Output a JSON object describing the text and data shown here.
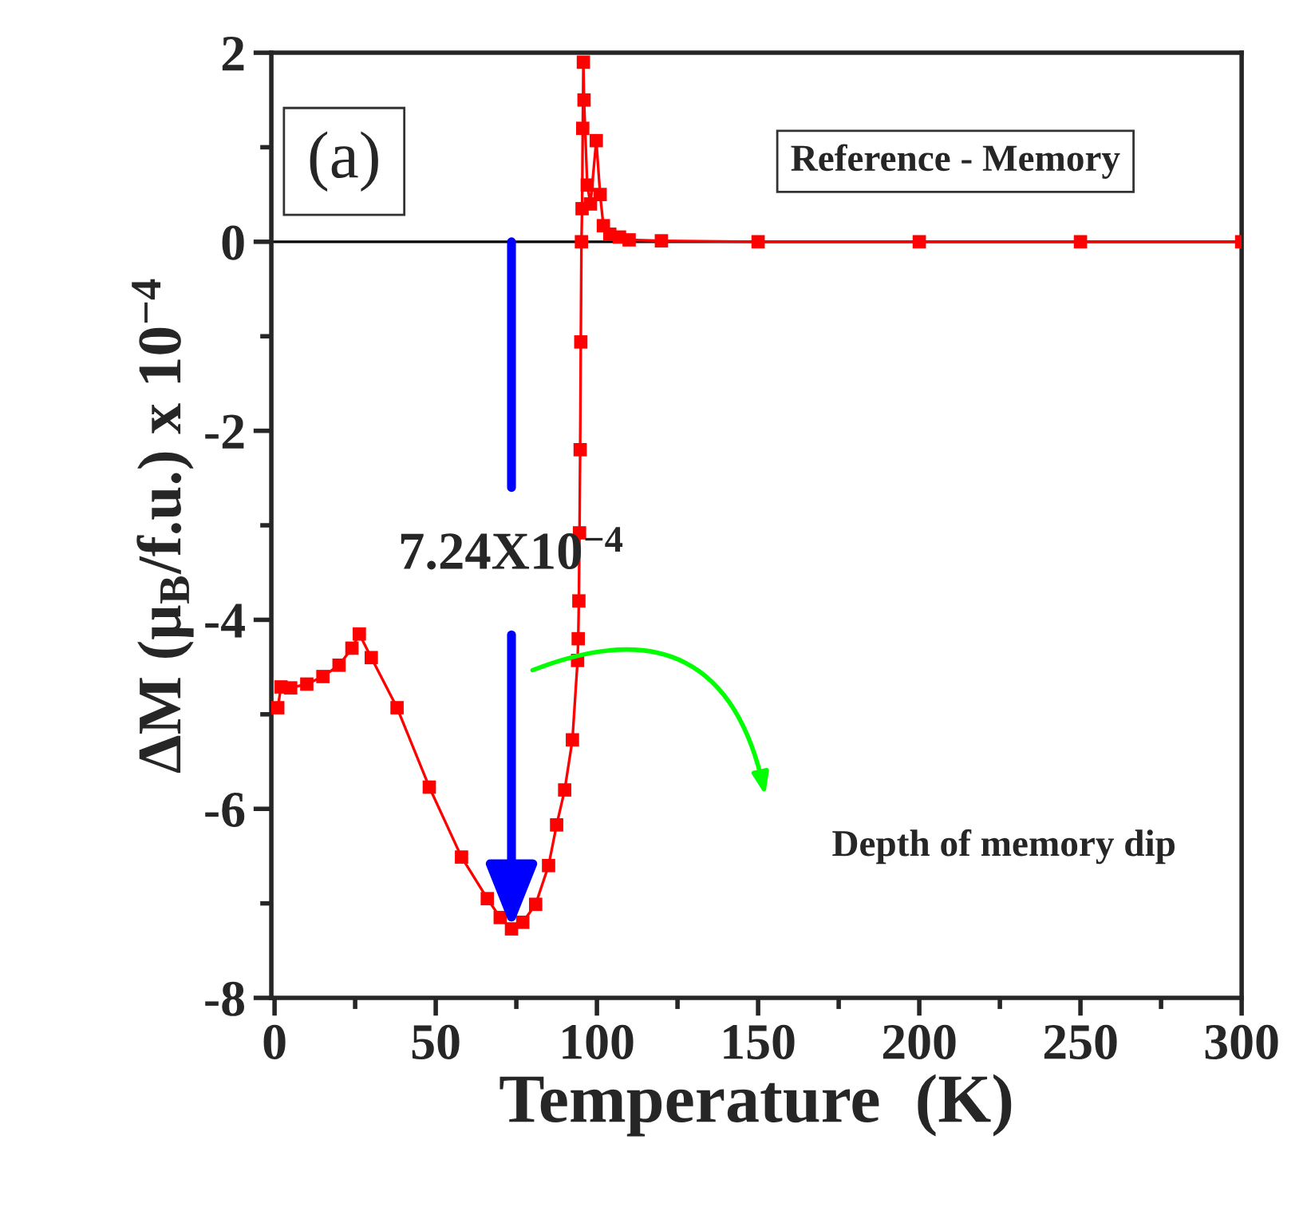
{
  "chart_data": {
    "type": "line",
    "xlabel": "Temperature  (K)",
    "ylabel": "ΔM (μ$_{B}$/f.u.) x 10$^{−4}$",
    "x": [
      1,
      2,
      5,
      10,
      15,
      20,
      24,
      26.3,
      30,
      38,
      48,
      58,
      66,
      70,
      73.5,
      77,
      81,
      85,
      87.5,
      90,
      92.4,
      94,
      94.2,
      94.4,
      94.6,
      94.8,
      95,
      95.2,
      95.4,
      95.6,
      95.8,
      96,
      97,
      98,
      99.8,
      101,
      102,
      104,
      107,
      110,
      120,
      150,
      200,
      250,
      300
    ],
    "series": [
      {
        "color": "#ff0000",
        "values": [
          -4.93,
          -4.71,
          -4.72,
          -4.68,
          -4.6,
          -4.48,
          -4.3,
          -4.15,
          -4.4,
          -4.93,
          -5.77,
          -6.51,
          -6.95,
          -7.15,
          -7.27,
          -7.2,
          -7.01,
          -6.6,
          -6.17,
          -5.8,
          -5.27,
          -4.43,
          -4.2,
          -3.8,
          -3.08,
          -2.2,
          -1.06,
          0,
          0.35,
          1.2,
          1.9,
          1.5,
          0.6,
          0.4,
          1.07,
          0.5,
          0.17,
          0.08,
          0.05,
          0.02,
          0.01,
          0,
          0,
          0,
          0
        ]
      }
    ],
    "marker": "square",
    "line_style": "solid",
    "xlim": [
      -1,
      300
    ],
    "xticks": [
      0,
      50,
      100,
      150,
      200,
      250,
      300
    ],
    "ylim": [
      -8,
      2
    ],
    "yticks": [
      -8,
      -6,
      -4,
      -2,
      0,
      2
    ],
    "ref_lines": [
      {
        "axis": "y",
        "value": 0,
        "color": "#000000"
      }
    ],
    "annotations": [
      "(a)",
      "Reference - Memory",
      {
        "text": "7.24X10$^{−4}$",
        "x": 73.5,
        "y": -7.27
      },
      "Depth of memory dip"
    ]
  }
}
